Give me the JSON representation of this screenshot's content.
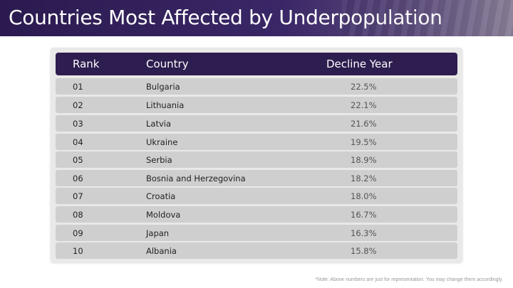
{
  "header": {
    "title": "Countries Most Affected by Underpopulation"
  },
  "table": {
    "columns": [
      "Rank",
      "Country",
      "Decline Year"
    ],
    "rows": [
      {
        "rank": "01",
        "country": "Bulgaria",
        "value": "22.5%"
      },
      {
        "rank": "02",
        "country": "Lithuania",
        "value": "22.1%"
      },
      {
        "rank": "03",
        "country": "Latvia",
        "value": "21.6%"
      },
      {
        "rank": "04",
        "country": "Ukraine",
        "value": "19.5%"
      },
      {
        "rank": "05",
        "country": "Serbia",
        "value": "18.9%"
      },
      {
        "rank": "06",
        "country": "Bosnia and Herzegovina",
        "value": "18.2%"
      },
      {
        "rank": "07",
        "country": "Croatia",
        "value": "18.0%"
      },
      {
        "rank": "08",
        "country": "Moldova",
        "value": "16.7%"
      },
      {
        "rank": "09",
        "country": "Japan",
        "value": "16.3%"
      },
      {
        "rank": "10",
        "country": "Albania",
        "value": "15.8%"
      }
    ]
  },
  "footnote": "*Note: Above numbers are just for representation. You may change them accordingly.",
  "colors": {
    "header_bg": "#2e1d4f",
    "row_bg": "#cfcfcf",
    "panel_bg": "#e9e9e9"
  }
}
